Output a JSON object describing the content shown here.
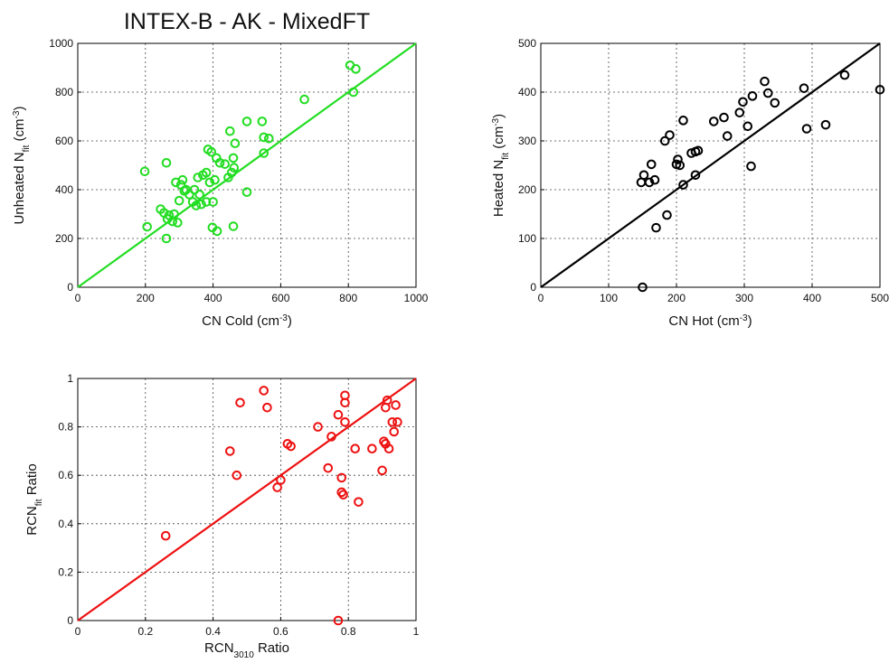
{
  "title": "INTEX-B - AK - MixedFT",
  "chart_data": [
    {
      "id": "cold",
      "type": "scatter",
      "color": "#22dd22",
      "xlim": [
        0,
        1000
      ],
      "ylim": [
        0,
        1000
      ],
      "xticks": [
        0,
        200,
        400,
        600,
        800,
        1000
      ],
      "yticks": [
        0,
        200,
        400,
        600,
        800,
        1000
      ],
      "xtick_labels": [
        "0",
        "200",
        "400",
        "600",
        "800",
        "1000"
      ],
      "ytick_labels": [
        "0",
        "200",
        "400",
        "600",
        "800",
        "1000"
      ],
      "xlabel": {
        "main": "CN Cold (cm",
        "sup": "-3",
        "tail": ")"
      },
      "ylabel": {
        "main": "Unheated N",
        "sub": "fit",
        "mid": " (cm",
        "sup": "-3",
        "tail": ")"
      },
      "grid": true,
      "line": [
        [
          0,
          0
        ],
        [
          1000,
          1000
        ]
      ],
      "points": [
        [
          198,
          475
        ],
        [
          205,
          248
        ],
        [
          245,
          320
        ],
        [
          255,
          305
        ],
        [
          262,
          510
        ],
        [
          262,
          200
        ],
        [
          265,
          280
        ],
        [
          270,
          295
        ],
        [
          280,
          270
        ],
        [
          285,
          300
        ],
        [
          290,
          430
        ],
        [
          295,
          265
        ],
        [
          300,
          355
        ],
        [
          305,
          420
        ],
        [
          310,
          440
        ],
        [
          315,
          395
        ],
        [
          320,
          400
        ],
        [
          330,
          380
        ],
        [
          340,
          350
        ],
        [
          345,
          400
        ],
        [
          350,
          335
        ],
        [
          355,
          450
        ],
        [
          360,
          380
        ],
        [
          365,
          340
        ],
        [
          370,
          460
        ],
        [
          380,
          470
        ],
        [
          380,
          350
        ],
        [
          385,
          565
        ],
        [
          390,
          430
        ],
        [
          395,
          555
        ],
        [
          398,
          245
        ],
        [
          400,
          350
        ],
        [
          405,
          440
        ],
        [
          410,
          530
        ],
        [
          412,
          230
        ],
        [
          420,
          510
        ],
        [
          435,
          505
        ],
        [
          445,
          450
        ],
        [
          450,
          640
        ],
        [
          455,
          470
        ],
        [
          460,
          530
        ],
        [
          460,
          250
        ],
        [
          462,
          490
        ],
        [
          465,
          590
        ],
        [
          500,
          680
        ],
        [
          500,
          390
        ],
        [
          545,
          680
        ],
        [
          550,
          550
        ],
        [
          550,
          615
        ],
        [
          565,
          610
        ],
        [
          670,
          770
        ],
        [
          805,
          910
        ],
        [
          815,
          800
        ],
        [
          822,
          895
        ]
      ]
    },
    {
      "id": "hot",
      "type": "scatter",
      "color": "#000000",
      "xlim": [
        0,
        500
      ],
      "ylim": [
        0,
        500
      ],
      "xticks": [
        0,
        100,
        200,
        300,
        400,
        500
      ],
      "yticks": [
        0,
        100,
        200,
        300,
        400,
        500
      ],
      "xtick_labels": [
        "0",
        "100",
        "200",
        "300",
        "400",
        "500"
      ],
      "ytick_labels": [
        "0",
        "100",
        "200",
        "300",
        "400",
        "500"
      ],
      "xlabel": {
        "main": "CN Hot (cm",
        "sup": "-3",
        "tail": ")"
      },
      "ylabel": {
        "main": "Heated N",
        "sub": "fit",
        "mid": " (cm",
        "sup": "-3",
        "tail": ")"
      },
      "grid": true,
      "line": [
        [
          0,
          0
        ],
        [
          500,
          500
        ]
      ],
      "points": [
        [
          148,
          215
        ],
        [
          150,
          0
        ],
        [
          152,
          230
        ],
        [
          160,
          215
        ],
        [
          163,
          252
        ],
        [
          168,
          220
        ],
        [
          170,
          122
        ],
        [
          183,
          300
        ],
        [
          186,
          148
        ],
        [
          190,
          312
        ],
        [
          200,
          252
        ],
        [
          202,
          262
        ],
        [
          205,
          250
        ],
        [
          210,
          210
        ],
        [
          210,
          342
        ],
        [
          222,
          275
        ],
        [
          228,
          230
        ],
        [
          228,
          278
        ],
        [
          232,
          280
        ],
        [
          255,
          340
        ],
        [
          270,
          348
        ],
        [
          275,
          310
        ],
        [
          293,
          358
        ],
        [
          298,
          380
        ],
        [
          305,
          330
        ],
        [
          310,
          248
        ],
        [
          312,
          392
        ],
        [
          330,
          422
        ],
        [
          335,
          398
        ],
        [
          345,
          378
        ],
        [
          388,
          408
        ],
        [
          392,
          325
        ],
        [
          420,
          333
        ],
        [
          448,
          435
        ],
        [
          500,
          405
        ]
      ]
    },
    {
      "id": "ratio",
      "type": "scatter",
      "color": "#ee1111",
      "xlim": [
        0,
        1
      ],
      "ylim": [
        0,
        1
      ],
      "xticks": [
        0,
        0.2,
        0.4,
        0.6,
        0.8,
        1
      ],
      "yticks": [
        0,
        0.2,
        0.4,
        0.6,
        0.8,
        1
      ],
      "xtick_labels": [
        "0",
        "0.2",
        "0.4",
        "0.6",
        "0.8",
        "1"
      ],
      "ytick_labels": [
        "0",
        "0.2",
        "0.4",
        "0.6",
        "0.8",
        "1"
      ],
      "xlabel": {
        "main": "RCN",
        "sub": "3010",
        "tail": " Ratio"
      },
      "ylabel": {
        "main": "RCN",
        "sub": "fit",
        "tail": " Ratio"
      },
      "grid": true,
      "line": [
        [
          0,
          0
        ],
        [
          1,
          1
        ]
      ],
      "points": [
        [
          0.26,
          0.35
        ],
        [
          0.45,
          0.7
        ],
        [
          0.47,
          0.6
        ],
        [
          0.48,
          0.9
        ],
        [
          0.55,
          0.95
        ],
        [
          0.56,
          0.88
        ],
        [
          0.59,
          0.55
        ],
        [
          0.6,
          0.58
        ],
        [
          0.62,
          0.73
        ],
        [
          0.63,
          0.72
        ],
        [
          0.71,
          0.8
        ],
        [
          0.74,
          0.63
        ],
        [
          0.75,
          0.76
        ],
        [
          0.77,
          0.85
        ],
        [
          0.77,
          0.0
        ],
        [
          0.78,
          0.59
        ],
        [
          0.78,
          0.53
        ],
        [
          0.785,
          0.52
        ],
        [
          0.79,
          0.93
        ],
        [
          0.79,
          0.9
        ],
        [
          0.79,
          0.82
        ],
        [
          0.82,
          0.71
        ],
        [
          0.83,
          0.49
        ],
        [
          0.87,
          0.71
        ],
        [
          0.9,
          0.62
        ],
        [
          0.905,
          0.74
        ],
        [
          0.91,
          0.88
        ],
        [
          0.91,
          0.73
        ],
        [
          0.915,
          0.91
        ],
        [
          0.92,
          0.71
        ],
        [
          0.93,
          0.82
        ],
        [
          0.935,
          0.78
        ],
        [
          0.94,
          0.89
        ],
        [
          0.945,
          0.82
        ]
      ]
    }
  ]
}
